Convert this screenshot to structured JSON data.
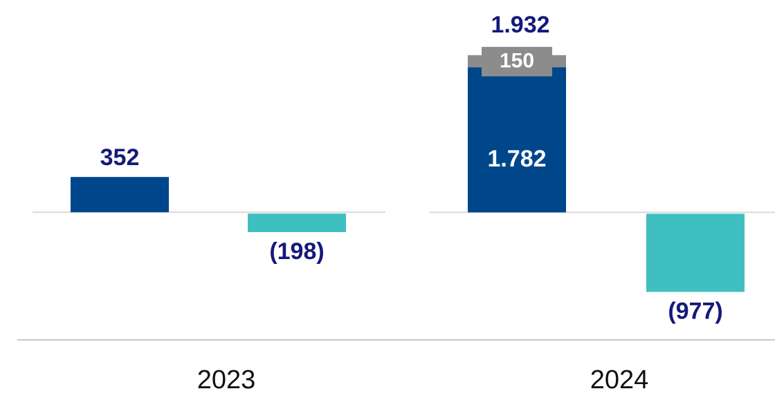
{
  "chart_data": [
    {
      "type": "bar",
      "categories": [
        "2023"
      ],
      "ylim": [
        -1260,
        1980
      ],
      "series": [
        {
          "color": "#00468b",
          "values": [
            352
          ],
          "value_labels": [
            "352"
          ]
        },
        {
          "color": "#8c8c8c",
          "values": [
            null
          ],
          "value_labels": [
            null
          ]
        },
        {
          "color": "#3fbfc0",
          "values": [
            -198
          ],
          "value_labels": [
            "(198)"
          ]
        }
      ]
    },
    {
      "type": "bar",
      "categories": [
        "2024"
      ],
      "ylim": [
        -1550,
        2440
      ],
      "series": [
        {
          "color": "#00468b",
          "values": [
            1782
          ],
          "value_labels": [
            "1.782"
          ]
        },
        {
          "color": "#8c8c8c",
          "values": [
            150
          ],
          "value_labels": [
            "150"
          ]
        },
        {
          "color": "#3fbfc0",
          "values": [
            -977
          ],
          "value_labels": [
            "(977)"
          ]
        }
      ],
      "annotations": [
        {
          "text": "1.932",
          "value": 1932
        }
      ]
    }
  ]
}
